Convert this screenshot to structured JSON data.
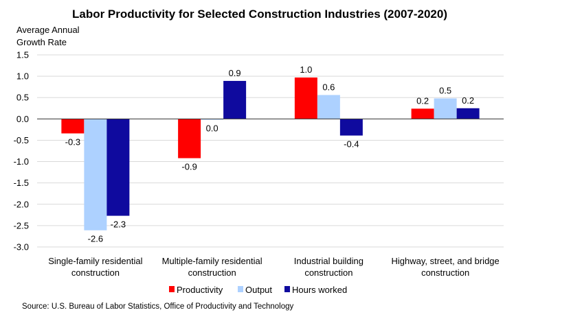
{
  "chart_data": {
    "type": "bar",
    "title": "Labor Productivity for Selected Construction Industries (2007-2020)",
    "ylabel": [
      "Average Annual",
      "Growth Rate"
    ],
    "ylim": [
      -3.0,
      1.5
    ],
    "yticks": [
      "1.5",
      "1.0",
      "0.5",
      "0.0",
      "-0.5",
      "-1.0",
      "-1.5",
      "-2.0",
      "-2.5",
      "-3.0"
    ],
    "ytick_values": [
      1.5,
      1.0,
      0.5,
      0.0,
      -0.5,
      -1.0,
      -1.5,
      -2.0,
      -2.5,
      -3.0
    ],
    "grid": true,
    "legend_position": "bottom",
    "categories": [
      [
        "Single-family residential",
        "construction"
      ],
      [
        "Multiple-family residential",
        "construction"
      ],
      [
        "Industrial building",
        "construction"
      ],
      [
        "Highway, street, and bridge",
        "construction"
      ]
    ],
    "series": [
      {
        "name": "Productivity",
        "color": "#FF0000",
        "values": [
          -0.34,
          -0.92,
          0.97,
          0.24
        ],
        "labels": [
          "-0.3",
          "-0.9",
          "1.0",
          "0.2"
        ]
      },
      {
        "name": "Output",
        "color": "#ADD1FF",
        "values": [
          -2.61,
          -0.02,
          0.56,
          0.48
        ],
        "labels": [
          "-2.6",
          "0.0",
          "0.6",
          "0.5"
        ]
      },
      {
        "name": "Hours worked",
        "color": "#0F0A9E",
        "values": [
          -2.27,
          0.89,
          -0.39,
          0.25
        ],
        "labels": [
          "-2.3",
          "0.9",
          "-0.4",
          "0.2"
        ]
      }
    ],
    "source": "Source:  U.S. Bureau of Labor Statistics, Office of Productivity and Technology"
  }
}
